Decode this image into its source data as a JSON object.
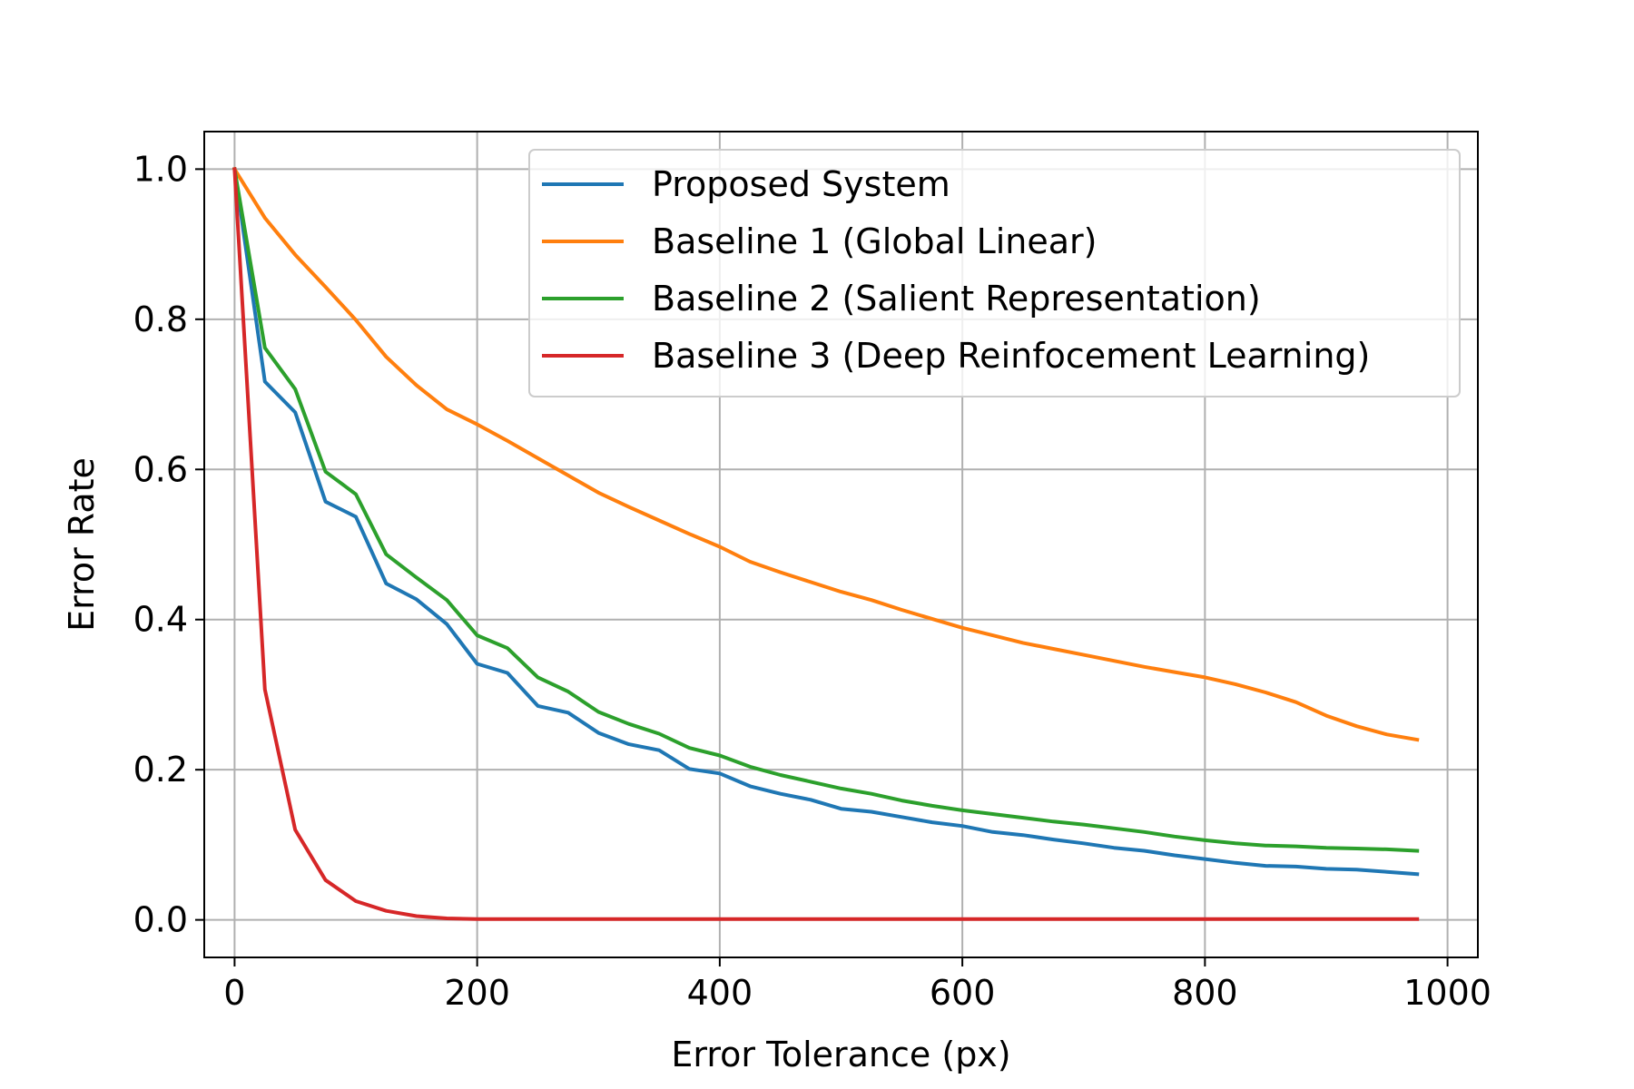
{
  "chart_data": {
    "type": "line",
    "title": "",
    "xlabel": "Error Tolerance (px)",
    "ylabel": "Error Rate",
    "xlim": [
      -25,
      1025
    ],
    "ylim": [
      -0.05,
      1.05
    ],
    "xticks": [
      0,
      200,
      400,
      600,
      800,
      1000
    ],
    "xtick_labels": [
      "0",
      "200",
      "400",
      "600",
      "800",
      "1000"
    ],
    "yticks": [
      0.0,
      0.2,
      0.4,
      0.6,
      0.8,
      1.0
    ],
    "ytick_labels": [
      "0.0",
      "0.2",
      "0.4",
      "0.6",
      "0.8",
      "1.0"
    ],
    "grid": true,
    "legend_position": "top-right",
    "x": [
      0,
      25,
      50,
      75,
      100,
      125,
      150,
      175,
      200,
      225,
      250,
      275,
      300,
      325,
      350,
      375,
      400,
      425,
      450,
      475,
      500,
      525,
      550,
      575,
      600,
      625,
      650,
      675,
      700,
      725,
      750,
      775,
      800,
      825,
      850,
      875,
      900,
      925,
      950,
      975
    ],
    "series": [
      {
        "name": "Proposed System",
        "color": "#1f77b4",
        "values": [
          1.0,
          0.717,
          0.676,
          0.557,
          0.537,
          0.448,
          0.427,
          0.394,
          0.341,
          0.329,
          0.285,
          0.276,
          0.249,
          0.234,
          0.226,
          0.201,
          0.195,
          0.178,
          0.168,
          0.16,
          0.148,
          0.144,
          0.137,
          0.13,
          0.125,
          0.117,
          0.113,
          0.107,
          0.102,
          0.096,
          0.092,
          0.086,
          0.081,
          0.076,
          0.072,
          0.071,
          0.068,
          0.067,
          0.064,
          0.061
        ]
      },
      {
        "name": "Baseline 1 (Global Linear)",
        "color": "#ff7f0e",
        "values": [
          1.0,
          0.935,
          0.886,
          0.843,
          0.799,
          0.75,
          0.712,
          0.68,
          0.66,
          0.638,
          0.615,
          0.592,
          0.569,
          0.55,
          0.532,
          0.514,
          0.497,
          0.477,
          0.463,
          0.45,
          0.437,
          0.426,
          0.413,
          0.401,
          0.389,
          0.379,
          0.369,
          0.361,
          0.353,
          0.345,
          0.337,
          0.33,
          0.323,
          0.314,
          0.303,
          0.29,
          0.272,
          0.258,
          0.247,
          0.24
        ]
      },
      {
        "name": "Baseline 2 (Salient Representation)",
        "color": "#2ca02c",
        "values": [
          1.0,
          0.762,
          0.707,
          0.597,
          0.567,
          0.487,
          0.456,
          0.426,
          0.379,
          0.362,
          0.323,
          0.304,
          0.277,
          0.261,
          0.248,
          0.229,
          0.219,
          0.204,
          0.193,
          0.184,
          0.175,
          0.168,
          0.159,
          0.152,
          0.146,
          0.141,
          0.136,
          0.131,
          0.127,
          0.122,
          0.117,
          0.111,
          0.106,
          0.102,
          0.099,
          0.098,
          0.096,
          0.095,
          0.094,
          0.092
        ]
      },
      {
        "name": "Baseline 3 (Deep Reinfocement Learning)",
        "color": "#d62728",
        "values": [
          1.0,
          0.307,
          0.12,
          0.053,
          0.025,
          0.012,
          0.005,
          0.002,
          0.001,
          0.001,
          0.001,
          0.001,
          0.001,
          0.001,
          0.001,
          0.001,
          0.001,
          0.001,
          0.001,
          0.001,
          0.001,
          0.001,
          0.001,
          0.001,
          0.001,
          0.001,
          0.001,
          0.001,
          0.001,
          0.001,
          0.001,
          0.001,
          0.001,
          0.001,
          0.001,
          0.001,
          0.001,
          0.001,
          0.001,
          0.001
        ]
      }
    ]
  }
}
